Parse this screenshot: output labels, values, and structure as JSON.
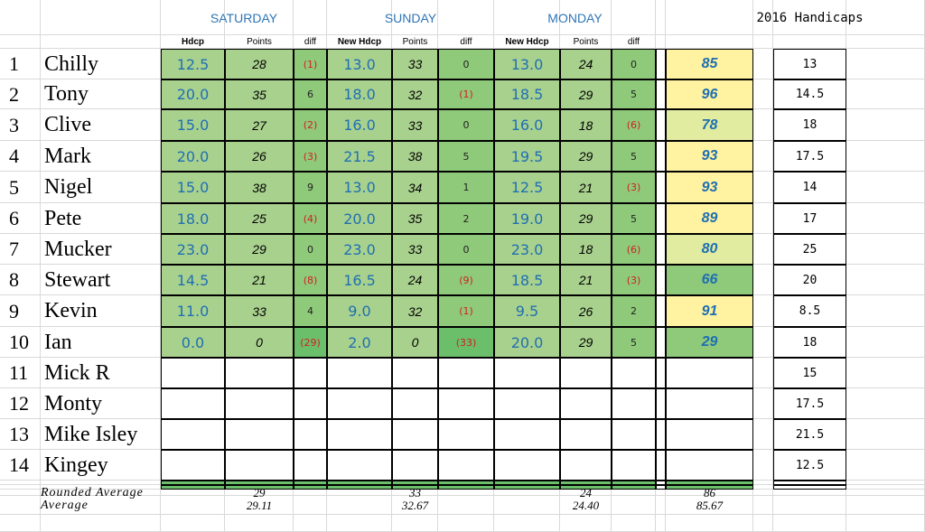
{
  "colors": {
    "gridline": "#d9d9d9",
    "border": "#000000",
    "green_light": "#a9d18e",
    "green_mid": "#8fca7a",
    "green_dark": "#6cbf6a",
    "yellow": "#fff2a0",
    "yellow_green": "#e2eca0",
    "day_label": "#2e75b6",
    "negative": "#d02020"
  },
  "days": [
    {
      "name": "SATURDAY",
      "headers": [
        "Hdcp",
        "Points",
        "diff"
      ]
    },
    {
      "name": "SUNDAY",
      "headers": [
        "New Hdcp",
        "Points",
        "diff"
      ]
    },
    {
      "name": "MONDAY",
      "headers": [
        "New Hdcp",
        "Points",
        "diff"
      ]
    }
  ],
  "handicaps_title": "2016 Handicaps",
  "players": [
    {
      "num": "1",
      "name": "Chilly",
      "vals": [
        "12.5",
        "28",
        "(1)",
        "13.0",
        "33",
        "0",
        "13.0",
        "24",
        "0"
      ],
      "total": "85",
      "handicap": "13"
    },
    {
      "num": "2",
      "name": "Tony",
      "vals": [
        "20.0",
        "35",
        "6",
        "18.0",
        "32",
        "(1)",
        "18.5",
        "29",
        "5"
      ],
      "total": "96",
      "handicap": "14.5"
    },
    {
      "num": "3",
      "name": "Clive",
      "vals": [
        "15.0",
        "27",
        "(2)",
        "16.0",
        "33",
        "0",
        "16.0",
        "18",
        "(6)"
      ],
      "total": "78",
      "handicap": "18"
    },
    {
      "num": "4",
      "name": "Mark",
      "vals": [
        "20.0",
        "26",
        "(3)",
        "21.5",
        "38",
        "5",
        "19.5",
        "29",
        "5"
      ],
      "total": "93",
      "handicap": "17.5"
    },
    {
      "num": "5",
      "name": "Nigel",
      "vals": [
        "15.0",
        "38",
        "9",
        "13.0",
        "34",
        "1",
        "12.5",
        "21",
        "(3)"
      ],
      "total": "93",
      "handicap": "14"
    },
    {
      "num": "6",
      "name": "Pete",
      "vals": [
        "18.0",
        "25",
        "(4)",
        "20.0",
        "35",
        "2",
        "19.0",
        "29",
        "5"
      ],
      "total": "89",
      "handicap": "17"
    },
    {
      "num": "7",
      "name": "Mucker",
      "vals": [
        "23.0",
        "29",
        "0",
        "23.0",
        "33",
        "0",
        "23.0",
        "18",
        "(6)"
      ],
      "total": "80",
      "handicap": "25"
    },
    {
      "num": "8",
      "name": "Stewart",
      "vals": [
        "14.5",
        "21",
        "(8)",
        "16.5",
        "24",
        "(9)",
        "18.5",
        "21",
        "(3)"
      ],
      "total": "66",
      "handicap": "20"
    },
    {
      "num": "9",
      "name": "Kevin",
      "vals": [
        "11.0",
        "33",
        "4",
        "9.0",
        "32",
        "(1)",
        "9.5",
        "26",
        "2"
      ],
      "total": "91",
      "handicap": "8.5"
    },
    {
      "num": "10",
      "name": "Ian",
      "vals": [
        "0.0",
        "0",
        "(29)",
        "2.0",
        "0",
        "(33)",
        "20.0",
        "29",
        "5"
      ],
      "total": "29",
      "handicap": "18"
    },
    {
      "num": "11",
      "name": "Mick R",
      "vals": null,
      "total": "",
      "handicap": "15"
    },
    {
      "num": "12",
      "name": "Monty",
      "vals": null,
      "total": "",
      "handicap": "17.5"
    },
    {
      "num": "13",
      "name": "Mike Isley",
      "vals": null,
      "total": "",
      "handicap": "21.5"
    },
    {
      "num": "14",
      "name": "Kingey",
      "vals": null,
      "total": "",
      "handicap": "12.5"
    }
  ],
  "footer": {
    "rounded_label": "Rounded Average",
    "rounded": [
      "29",
      "33",
      "24",
      "86"
    ],
    "average_label": "Average",
    "average": [
      "29.11",
      "32.67",
      "24.40",
      "85.67"
    ]
  }
}
